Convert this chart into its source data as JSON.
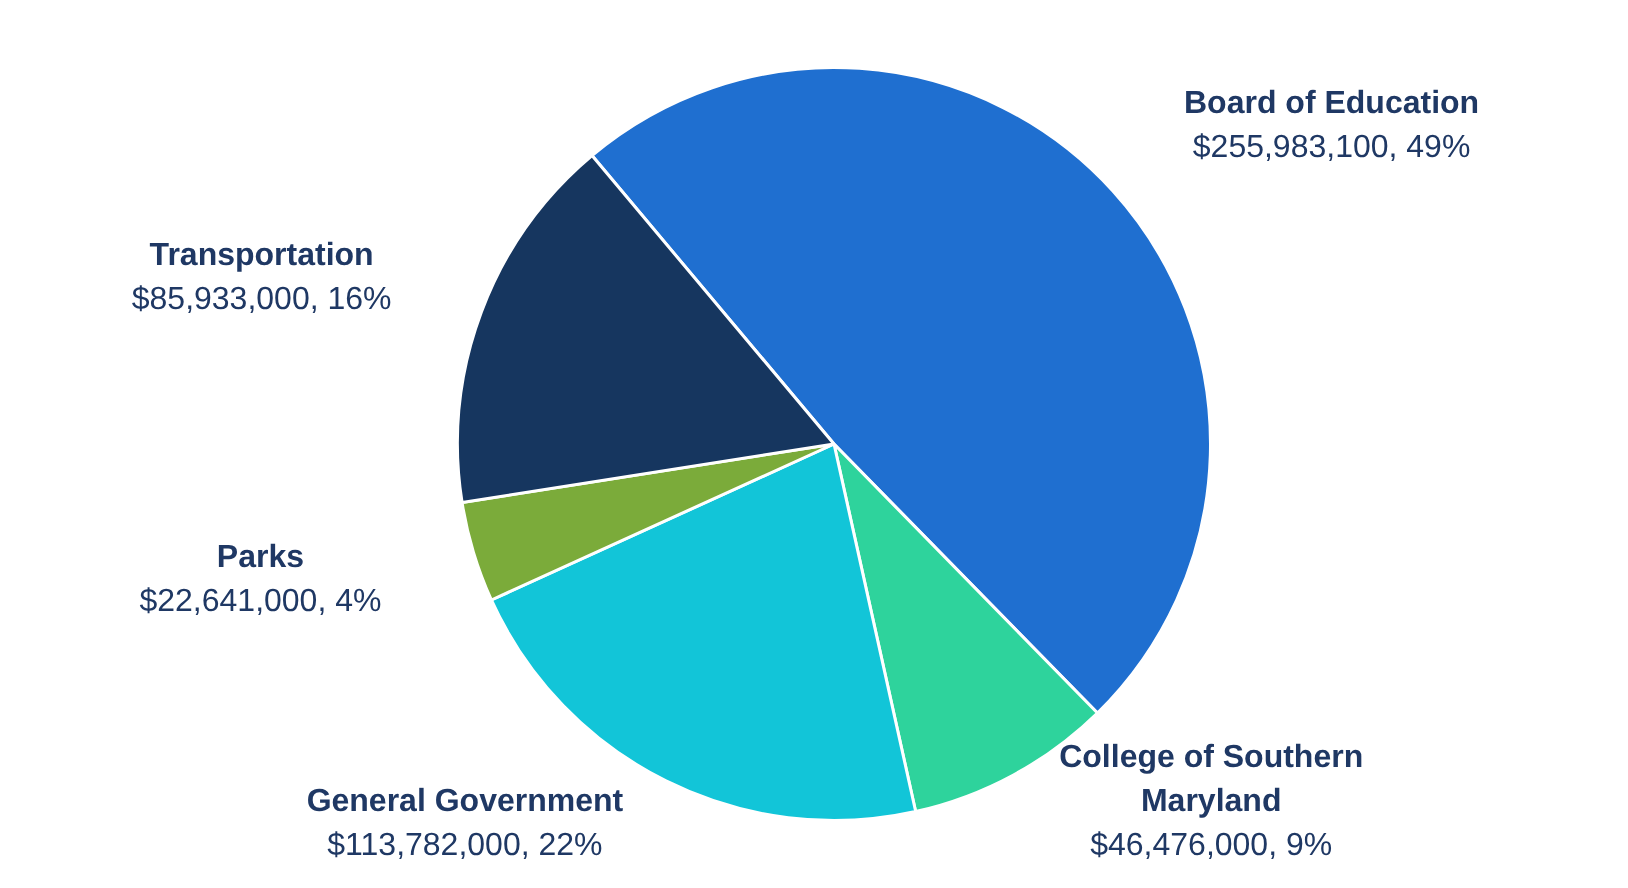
{
  "chart_data": {
    "type": "pie",
    "categories": [
      "Board of Education",
      "College of Southern Maryland",
      "General Government",
      "Parks",
      "Transportation"
    ],
    "values": [
      255983100,
      46476000,
      113782000,
      22641000,
      85933000
    ],
    "value_labels": [
      "$255,983,100, 49%",
      "$46,476,000, 9%",
      "$113,782,000, 22%",
      "$22,641,000, 4%",
      "$85,933,000, 16%"
    ],
    "colors": [
      "#1f6fd0",
      "#2ed39c",
      "#12c5d8",
      "#7bab3a",
      "#16365f"
    ],
    "legend": false
  }
}
